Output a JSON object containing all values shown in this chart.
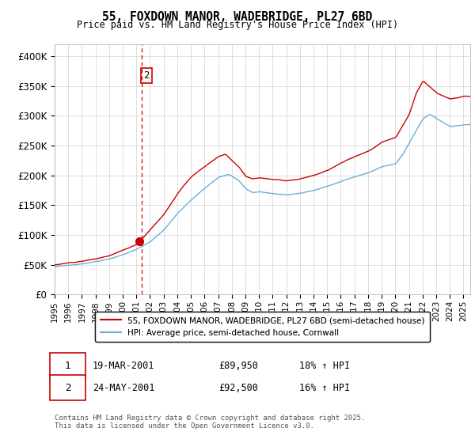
{
  "title": "55, FOXDOWN MANOR, WADEBRIDGE, PL27 6BD",
  "subtitle": "Price paid vs. HM Land Registry's House Price Index (HPI)",
  "red_color": "#cc0000",
  "blue_color": "#6baed6",
  "ylim": [
    0,
    420000
  ],
  "yticks": [
    0,
    50000,
    100000,
    150000,
    200000,
    250000,
    300000,
    350000,
    400000
  ],
  "ytick_labels": [
    "£0",
    "£50K",
    "£100K",
    "£150K",
    "£200K",
    "£250K",
    "£300K",
    "£350K",
    "£400K"
  ],
  "legend_entry1": "55, FOXDOWN MANOR, WADEBRIDGE, PL27 6BD (semi-detached house)",
  "legend_entry2": "HPI: Average price, semi-detached house, Cornwall",
  "transaction1_date": "19-MAR-2001",
  "transaction1_price": "£89,950",
  "transaction1_hpi": "18% ↑ HPI",
  "transaction2_date": "24-MAY-2001",
  "transaction2_price": "£92,500",
  "transaction2_hpi": "16% ↑ HPI",
  "footnote": "Contains HM Land Registry data © Crown copyright and database right 2025.\nThis data is licensed under the Open Government Licence v3.0.",
  "marker1_x": 2001.21,
  "marker1_y": 89950,
  "vline_x": 2001.38,
  "xmin": 1995.0,
  "xmax": 2025.5,
  "hpi_breakpoints": [
    1995,
    1996,
    1997,
    1998,
    1999,
    2000,
    2001,
    2002,
    2003,
    2004,
    2005,
    2006,
    2007,
    2007.75,
    2008.5,
    2009,
    2009.5,
    2010,
    2011,
    2012,
    2013,
    2014,
    2015,
    2016,
    2017,
    2018,
    2019,
    2020,
    2020.5,
    2021,
    2021.5,
    2022,
    2022.5,
    2023,
    2023.5,
    2024,
    2024.5,
    2025
  ],
  "hpi_values": [
    47000,
    49000,
    52000,
    56000,
    61000,
    68000,
    77000,
    90000,
    110000,
    138000,
    160000,
    180000,
    198000,
    203000,
    192000,
    178000,
    172000,
    173000,
    170000,
    168000,
    170000,
    175000,
    182000,
    190000,
    198000,
    205000,
    215000,
    220000,
    235000,
    255000,
    275000,
    295000,
    302000,
    295000,
    288000,
    282000,
    283000,
    285000
  ],
  "red_breakpoints": [
    1995,
    1996,
    1997,
    1998,
    1999,
    2000,
    2001,
    2001.21,
    2001.38,
    2002,
    2003,
    2004,
    2005,
    2006,
    2007,
    2007.5,
    2008,
    2008.5,
    2009,
    2009.5,
    2010,
    2011,
    2012,
    2013,
    2014,
    2015,
    2016,
    2017,
    2018,
    2019,
    2020,
    2020.5,
    2021,
    2021.5,
    2022,
    2022.5,
    2023,
    2023.5,
    2024,
    2024.5,
    2025
  ],
  "red_values": [
    50000,
    52500,
    55500,
    59500,
    65000,
    73000,
    83000,
    89950,
    92500,
    109000,
    135000,
    170000,
    198000,
    215000,
    232000,
    236000,
    225000,
    215000,
    200000,
    196000,
    198000,
    195000,
    193000,
    196000,
    202000,
    210000,
    222000,
    232000,
    242000,
    257000,
    265000,
    285000,
    305000,
    340000,
    360000,
    350000,
    340000,
    335000,
    330000,
    332000,
    335000
  ]
}
